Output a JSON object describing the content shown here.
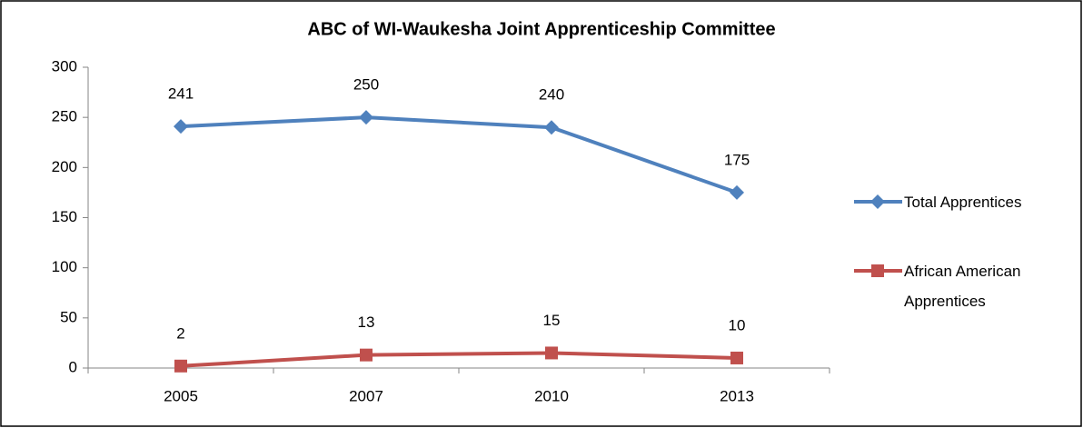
{
  "chart_data": {
    "type": "line",
    "title": "ABC of WI-Waukesha Joint Apprenticeship Committee",
    "categories": [
      "2005",
      "2007",
      "2010",
      "2013"
    ],
    "series": [
      {
        "name": "Total Apprentices",
        "color": "#4f81bd",
        "marker": "diamond",
        "values": [
          241,
          250,
          240,
          175
        ]
      },
      {
        "name": "African American Apprentices",
        "color": "#c0504d",
        "marker": "square",
        "values": [
          2,
          13,
          15,
          10
        ]
      }
    ],
    "ylim": [
      0,
      300
    ],
    "yticks": [
      0,
      50,
      100,
      150,
      200,
      250,
      300
    ],
    "grid": false,
    "legend": "right"
  }
}
